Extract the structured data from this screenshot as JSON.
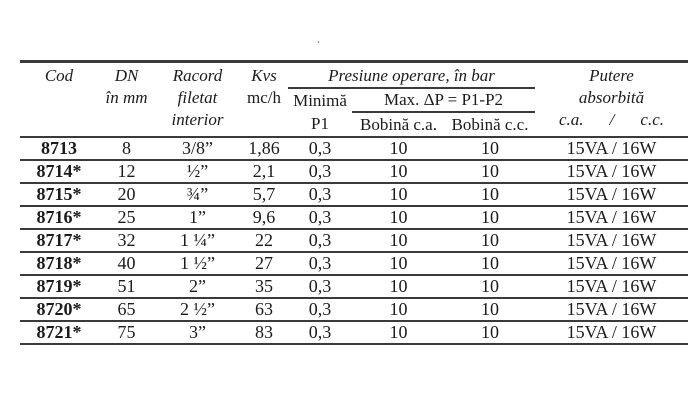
{
  "page": {
    "background": "#ffffff",
    "stray_mark": "·"
  },
  "colors": {
    "text": "#1b1b1b",
    "line": "#3a3a3a"
  },
  "table": {
    "header": {
      "cod": "Cod",
      "dn": [
        "DN",
        "în mm"
      ],
      "racord": [
        "Racord",
        "filetat",
        "interior"
      ],
      "kvs_name": "Kvs",
      "kvs_unit": "mc/h",
      "presiune_group": "Presiune operare, în bar",
      "minima": "Minimă",
      "p1": "P1",
      "max_dp_group": "Max. ΔP = P1-P2",
      "bobina_ca": "Bobină c.a.",
      "bobina_cc": "Bobină c.c.",
      "putere": [
        "Putere",
        "absorbită"
      ],
      "putere_ca": "c.a.",
      "putere_slash": "/",
      "putere_cc": "c.c."
    },
    "column_order": [
      "cod",
      "dn",
      "racord",
      "kvs",
      "p1",
      "bobina_ca",
      "bobina_cc",
      "putere"
    ],
    "rows": [
      {
        "cod": "8713",
        "dn": "8",
        "racord": "3/8”",
        "kvs": "1,86",
        "p1": "0,3",
        "bobina_ca": "10",
        "bobina_cc": "10",
        "putere": "15VA / 16W"
      },
      {
        "cod": "8714*",
        "dn": "12",
        "racord": "½”",
        "kvs": "2,1",
        "p1": "0,3",
        "bobina_ca": "10",
        "bobina_cc": "10",
        "putere": "15VA / 16W"
      },
      {
        "cod": "8715*",
        "dn": "20",
        "racord": "¾”",
        "kvs": "5,7",
        "p1": "0,3",
        "bobina_ca": "10",
        "bobina_cc": "10",
        "putere": "15VA / 16W"
      },
      {
        "cod": "8716*",
        "dn": "25",
        "racord": "1”",
        "kvs": "9,6",
        "p1": "0,3",
        "bobina_ca": "10",
        "bobina_cc": "10",
        "putere": "15VA / 16W"
      },
      {
        "cod": "8717*",
        "dn": "32",
        "racord": "1 ¼”",
        "kvs": "22",
        "p1": "0,3",
        "bobina_ca": "10",
        "bobina_cc": "10",
        "putere": "15VA / 16W"
      },
      {
        "cod": "8718*",
        "dn": "40",
        "racord": "1 ½”",
        "kvs": "27",
        "p1": "0,3",
        "bobina_ca": "10",
        "bobina_cc": "10",
        "putere": "15VA / 16W"
      },
      {
        "cod": "8719*",
        "dn": "51",
        "racord": "2”",
        "kvs": "35",
        "p1": "0,3",
        "bobina_ca": "10",
        "bobina_cc": "10",
        "putere": "15VA / 16W"
      },
      {
        "cod": "8720*",
        "dn": "65",
        "racord": "2 ½”",
        "kvs": "63",
        "p1": "0,3",
        "bobina_ca": "10",
        "bobina_cc": "10",
        "putere": "15VA / 16W"
      },
      {
        "cod": "8721*",
        "dn": "75",
        "racord": "3”",
        "kvs": "83",
        "p1": "0,3",
        "bobina_ca": "10",
        "bobina_cc": "10",
        "putere": "15VA / 16W"
      }
    ]
  }
}
